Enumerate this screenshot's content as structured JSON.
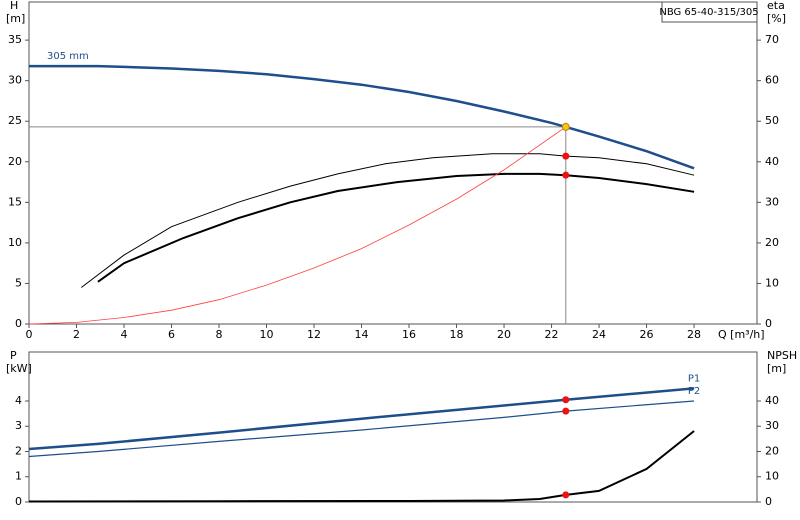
{
  "chart_data": [
    {
      "type": "line",
      "title": "NBG 65-40-315/305",
      "ylabel": "H",
      "ylabel_unit": "[m]",
      "y2label": "eta",
      "y2label_unit": "[%]",
      "xlabel": "Q [m³/h]",
      "xlim": [
        0,
        30.65
      ],
      "xticks": [
        0,
        2,
        4,
        6,
        8,
        10,
        12,
        14,
        16,
        18,
        20,
        22,
        24,
        26,
        28
      ],
      "ylim": [
        0,
        39.7
      ],
      "yticks": [
        0,
        5,
        10,
        15,
        20,
        25,
        30,
        35
      ],
      "y2lim": [
        0,
        79.4
      ],
      "y2ticks": [
        0,
        10,
        20,
        30,
        40,
        50,
        60,
        70
      ],
      "series": [
        {
          "name": "305 mm",
          "label_at": "start",
          "color": "#1f4e8c",
          "width": 2.5,
          "x": [
            0,
            2.9,
            4,
            6,
            8,
            10,
            12,
            14,
            16,
            18,
            20,
            22,
            22.6,
            24,
            26,
            28
          ],
          "values": [
            31.8,
            31.8,
            31.7,
            31.5,
            31.2,
            30.8,
            30.2,
            29.5,
            28.6,
            27.5,
            26.2,
            24.8,
            24.3,
            23.1,
            21.3,
            19.2
          ]
        },
        {
          "color": "#000000",
          "width": 1,
          "axis": "y2",
          "x": [
            2.2,
            4,
            6,
            8.8,
            11,
            13,
            15,
            17,
            19.5,
            21.5,
            22.6,
            24,
            26,
            28
          ],
          "values": [
            9,
            17,
            24,
            30,
            34,
            37,
            39.5,
            41,
            42,
            42,
            41.4,
            41,
            39.5,
            36.7
          ]
        },
        {
          "color": "#000000",
          "width": 2,
          "axis": "y2",
          "x": [
            2.9,
            4,
            6.5,
            8.8,
            11,
            13,
            15.5,
            18,
            20,
            21.5,
            22.6,
            24,
            26,
            28
          ],
          "values": [
            10.4,
            15,
            21.2,
            26.1,
            30,
            32.8,
            35,
            36.5,
            37,
            37,
            36.7,
            36,
            34.5,
            32.6
          ]
        },
        {
          "color": "#ff4040",
          "width": 0.8,
          "x": [
            0,
            2,
            4,
            6,
            8,
            10,
            12,
            14,
            16,
            18,
            20,
            22.6
          ],
          "values": [
            0,
            0.2,
            0.8,
            1.7,
            3,
            4.8,
            6.9,
            9.3,
            12.2,
            15.4,
            19,
            24.3
          ]
        }
      ],
      "points": [
        {
          "x": 22.6,
          "y": 24.3,
          "color": "#f5c518",
          "guide_lines": true
        },
        {
          "x": 22.6,
          "y": 41.4,
          "axis": "y2",
          "color": "#ee1111"
        },
        {
          "x": 22.6,
          "y": 36.7,
          "axis": "y2",
          "color": "#ee1111"
        }
      ]
    },
    {
      "type": "line",
      "ylabel": "P",
      "ylabel_unit": "[kW]",
      "y2label": "NPSH",
      "y2label_unit": "[m]",
      "xlim": [
        0,
        30.65
      ],
      "ylim": [
        0,
        5.94
      ],
      "yticks": [
        0,
        1,
        2,
        3,
        4
      ],
      "y2lim": [
        0,
        59.4
      ],
      "y2ticks": [
        0,
        10,
        20,
        30,
        40
      ],
      "series": [
        {
          "name": "P1",
          "label_at": "end",
          "color": "#1f4e8c",
          "width": 2.5,
          "x": [
            0,
            2.9,
            8,
            14,
            20,
            22.6,
            28
          ],
          "values": [
            2.1,
            2.3,
            2.75,
            3.3,
            3.82,
            4.05,
            4.5
          ]
        },
        {
          "name": "P2",
          "label_at": "end",
          "color": "#1f4e8c",
          "width": 1.2,
          "x": [
            0,
            2.9,
            8,
            14,
            20,
            22.6,
            28
          ],
          "values": [
            1.8,
            2,
            2.4,
            2.85,
            3.35,
            3.6,
            4
          ]
        },
        {
          "color": "#000000",
          "width": 2,
          "axis": "y2",
          "x": [
            0,
            8,
            16,
            20,
            21.5,
            22.6,
            24,
            26,
            28
          ],
          "values": [
            0.2,
            0.3,
            0.4,
            0.6,
            1.2,
            2.8,
            4.4,
            13.1,
            28.1
          ]
        }
      ],
      "points": [
        {
          "x": 22.6,
          "y": 4.05,
          "color": "#ee1111"
        },
        {
          "x": 22.6,
          "y": 3.6,
          "color": "#ee1111"
        },
        {
          "x": 22.6,
          "y": 2.8,
          "axis": "y2",
          "color": "#ee1111"
        }
      ]
    }
  ]
}
